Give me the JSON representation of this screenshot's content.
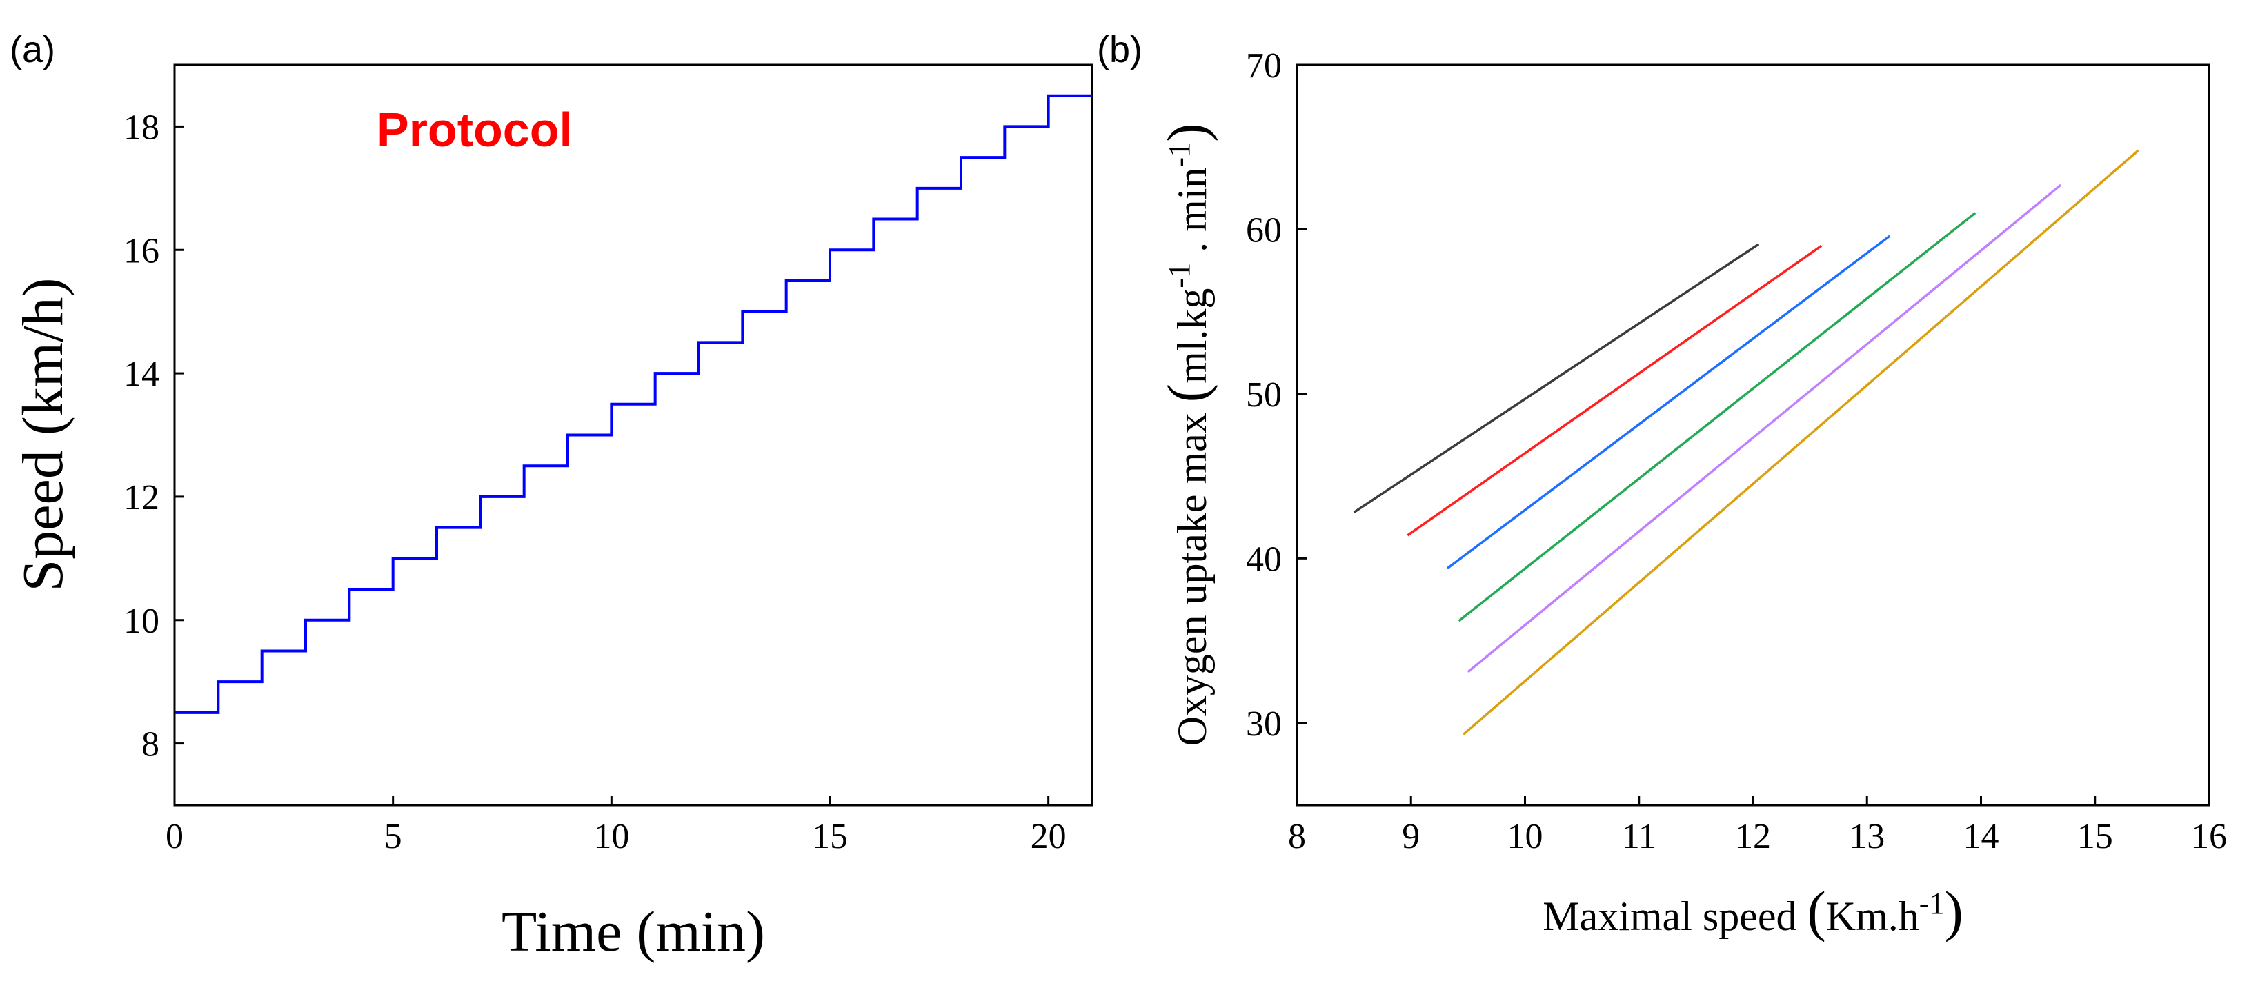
{
  "chart_data": [
    {
      "panel_label": "(a)",
      "type": "line",
      "step": true,
      "xlabel": "Time (min)",
      "ylabel": "Speed (km/h)",
      "xlim": [
        0,
        21
      ],
      "ylim": [
        7,
        19
      ],
      "xticks": [
        0,
        5,
        10,
        15,
        20
      ],
      "yticks": [
        8,
        10,
        12,
        14,
        16,
        18
      ],
      "annotation": {
        "text": "Protocol",
        "color": "#ff0000"
      },
      "series": [
        {
          "name": "Protocol",
          "color": "#0000ff",
          "start_x": 0,
          "start_y": 8.5,
          "step_dx": 1,
          "step_dy": 0.5,
          "end_x": 21,
          "end_y": 18.5
        }
      ]
    },
    {
      "panel_label": "(b)",
      "type": "line",
      "xlabel": {
        "main": "Maximal speed ",
        "open": "(",
        "unit": "Km.h",
        "sup": "-1",
        "close": ")"
      },
      "ylabel": {
        "main": "Oxygen uptake max ",
        "open": "(",
        "unit1": "ml.kg",
        "sup1": "-1",
        "mid": " . min",
        "sup2": "-1",
        "close": ")"
      },
      "xlim": [
        8,
        16
      ],
      "ylim": [
        25,
        70
      ],
      "xticks": [
        8,
        9,
        10,
        11,
        12,
        13,
        14,
        15,
        16
      ],
      "yticks": [
        30,
        40,
        50,
        60,
        70
      ],
      "series": [
        {
          "name": "black",
          "color": "#3c3c3c",
          "x": [
            8.5,
            12.05
          ],
          "y": [
            42.8,
            59.1
          ]
        },
        {
          "name": "red",
          "color": "#ff2020",
          "x": [
            8.97,
            12.6
          ],
          "y": [
            41.4,
            59.0
          ]
        },
        {
          "name": "blue",
          "color": "#1e6eff",
          "x": [
            9.32,
            13.2
          ],
          "y": [
            39.4,
            59.6
          ]
        },
        {
          "name": "green",
          "color": "#22aa55",
          "x": [
            9.42,
            13.95
          ],
          "y": [
            36.2,
            61.0
          ]
        },
        {
          "name": "purple",
          "color": "#c080ff",
          "x": [
            9.5,
            14.7
          ],
          "y": [
            33.1,
            62.7
          ]
        },
        {
          "name": "orange",
          "color": "#daa010",
          "x": [
            9.46,
            15.38
          ],
          "y": [
            29.3,
            64.8
          ]
        }
      ]
    }
  ]
}
